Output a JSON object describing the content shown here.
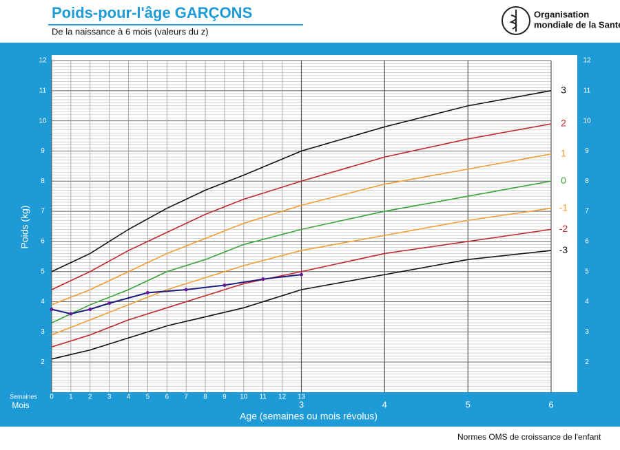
{
  "header": {
    "title": "Poids-pour-l'âge  GARÇONS",
    "subtitle": "De la naissance à 6 mois (valeurs du z)",
    "org_line1": "Organisation",
    "org_line2": "mondiale de la Santé"
  },
  "footer": "Normes OMS de croissance de l'enfant",
  "chart_data": {
    "type": "line",
    "x_label": "Age (semaines ou mois révolus)",
    "y_label": "Poids (kg)",
    "weeks_row_label": "Semaines",
    "months_row_label": "Mois",
    "xlim": [
      0,
      26
    ],
    "ylim": [
      1,
      12
    ],
    "xticks": [
      0,
      1,
      2,
      3,
      4,
      5,
      6,
      7,
      8,
      9,
      10,
      11,
      12,
      13
    ],
    "month_ticks": [
      {
        "value": 13,
        "label": "3"
      },
      {
        "value": 17.33,
        "label": "4"
      },
      {
        "value": 21.67,
        "label": "5"
      },
      {
        "value": 26,
        "label": "6"
      }
    ],
    "yticks": [
      2,
      3,
      4,
      5,
      6,
      7,
      8,
      9,
      10,
      11,
      12
    ],
    "minor_lines_per_unit": 10,
    "grid": true,
    "x": [
      0,
      2,
      4,
      6,
      8,
      10,
      13,
      17.33,
      21.67,
      26
    ],
    "series": [
      {
        "name": "3",
        "color": "#111111",
        "values": [
          5.0,
          5.6,
          6.4,
          7.1,
          7.7,
          8.2,
          9.0,
          9.8,
          10.5,
          11.0
        ]
      },
      {
        "name": "2",
        "color": "#c0272d",
        "values": [
          4.4,
          5.0,
          5.7,
          6.3,
          6.9,
          7.4,
          8.0,
          8.8,
          9.4,
          9.9
        ]
      },
      {
        "name": "1",
        "color": "#f39c33",
        "values": [
          3.9,
          4.4,
          5.0,
          5.6,
          6.1,
          6.6,
          7.2,
          7.9,
          8.4,
          8.9
        ]
      },
      {
        "name": "0",
        "color": "#3aa335",
        "values": [
          3.3,
          3.9,
          4.4,
          5.0,
          5.4,
          5.9,
          6.4,
          7.0,
          7.5,
          8.0
        ]
      },
      {
        "name": "-1",
        "color": "#f39c33",
        "values": [
          2.9,
          3.4,
          3.9,
          4.4,
          4.8,
          5.2,
          5.7,
          6.2,
          6.7,
          7.1
        ]
      },
      {
        "name": "-2",
        "color": "#c0272d",
        "values": [
          2.5,
          2.9,
          3.4,
          3.8,
          4.2,
          4.6,
          5.0,
          5.6,
          6.0,
          6.4
        ]
      },
      {
        "name": "-3",
        "color": "#111111",
        "values": [
          2.1,
          2.4,
          2.8,
          3.2,
          3.5,
          3.8,
          4.4,
          4.9,
          5.4,
          5.7
        ]
      }
    ],
    "child": {
      "color": "#1a1a7e",
      "x": [
        0,
        1,
        2,
        3,
        5,
        7,
        9,
        11,
        13
      ],
      "values": [
        3.75,
        3.6,
        3.75,
        3.95,
        4.3,
        4.4,
        4.55,
        4.75,
        4.9
      ]
    }
  }
}
